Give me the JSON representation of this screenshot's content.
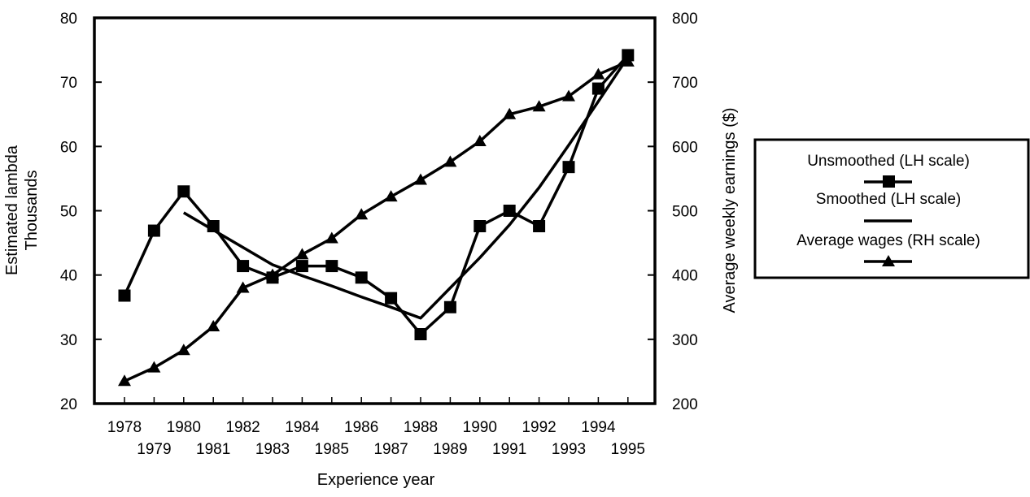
{
  "chart_data": {
    "type": "line",
    "x": [
      1978,
      1979,
      1980,
      1981,
      1982,
      1983,
      1984,
      1985,
      1986,
      1987,
      1988,
      1989,
      1990,
      1991,
      1992,
      1993,
      1994,
      1995
    ],
    "x_tick_labels_row1": [
      "1978",
      "1980",
      "1982",
      "1984",
      "1986",
      "1988",
      "1990",
      "1992",
      "1994"
    ],
    "x_tick_labels_row2": [
      "1979",
      "1981",
      "1983",
      "1985",
      "1987",
      "1989",
      "1991",
      "1993",
      "1995"
    ],
    "xlabel": "Experience year",
    "ylabel_left": [
      "Estimated lambda",
      "Thousands"
    ],
    "ylabel_right": "Average weekly earnings ($)",
    "ylim_left": [
      20,
      80
    ],
    "ylim_right": [
      200,
      800
    ],
    "yticks_left": [
      "20",
      "30",
      "40",
      "50",
      "60",
      "70",
      "80"
    ],
    "yticks_right": [
      "200",
      "300",
      "400",
      "500",
      "600",
      "700",
      "800"
    ],
    "grid": false,
    "legend_position": "right",
    "series": [
      {
        "name": "Unsmoothed (LH scale)",
        "axis": "left",
        "marker": "square",
        "x": [
          1978,
          1979,
          1980,
          1981,
          1982,
          1983,
          1984,
          1985,
          1986,
          1987,
          1988,
          1989,
          1990,
          1991,
          1992,
          1993,
          1994,
          1995
        ],
        "values": [
          36.8,
          46.9,
          53.0,
          47.6,
          41.4,
          39.6,
          41.4,
          41.4,
          39.6,
          36.4,
          30.8,
          35.0,
          47.6,
          50.0,
          47.6,
          56.8,
          69.0,
          74.2
        ]
      },
      {
        "name": "Smoothed (LH scale)",
        "axis": "left",
        "marker": "none",
        "x": [
          1980,
          1981,
          1982,
          1983,
          1984,
          1985,
          1986,
          1987,
          1988,
          1989,
          1990,
          1991,
          1992,
          1993,
          1994,
          1995
        ],
        "values": [
          49.7,
          47.0,
          44.3,
          41.6,
          39.9,
          38.3,
          36.6,
          35.0,
          33.3,
          38.0,
          42.7,
          47.8,
          53.6,
          60.2,
          67.0,
          73.9
        ]
      },
      {
        "name": "Average wages (RH scale)",
        "axis": "right",
        "marker": "triangle",
        "x": [
          1978,
          1979,
          1980,
          1981,
          1982,
          1983,
          1984,
          1985,
          1986,
          1987,
          1988,
          1989,
          1990,
          1991,
          1992,
          1993,
          1994,
          1995
        ],
        "values": [
          235,
          256,
          283,
          320,
          380,
          400,
          432,
          457,
          494,
          522,
          548,
          576,
          608,
          650,
          662,
          678,
          712,
          732
        ]
      }
    ]
  }
}
